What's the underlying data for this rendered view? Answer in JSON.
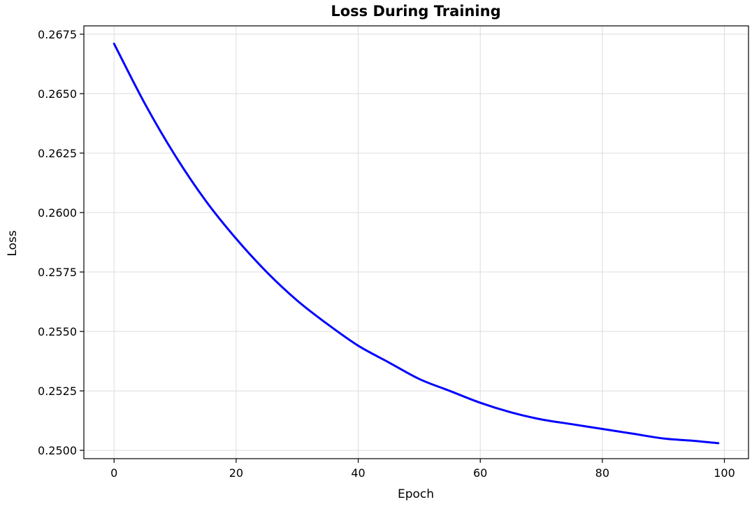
{
  "chart_data": {
    "type": "line",
    "title": "Loss During Training",
    "xlabel": "Epoch",
    "ylabel": "Loss",
    "xlim": [
      -4.95,
      103.95
    ],
    "ylim": [
      0.24965,
      0.26785
    ],
    "x_ticks": [
      0,
      20,
      40,
      60,
      80,
      100
    ],
    "y_ticks": [
      0.25,
      0.2525,
      0.255,
      0.2575,
      0.26,
      0.2625,
      0.265,
      0.2675
    ],
    "x_tick_labels": [
      "0",
      "20",
      "40",
      "60",
      "80",
      "100"
    ],
    "y_tick_labels": [
      "0.2500",
      "0.2525",
      "0.2550",
      "0.2575",
      "0.2600",
      "0.2625",
      "0.2650",
      "0.2675"
    ],
    "grid": true,
    "legend": "none",
    "series": [
      {
        "color": "#0000ff",
        "x": [
          0,
          5,
          10,
          15,
          20,
          25,
          30,
          35,
          40,
          45,
          50,
          55,
          60,
          65,
          70,
          75,
          80,
          85,
          90,
          95,
          99
        ],
        "y": [
          0.2671,
          0.2646,
          0.2624,
          0.2605,
          0.2589,
          0.2575,
          0.2563,
          0.2553,
          0.2544,
          0.2537,
          0.253,
          0.2525,
          0.252,
          0.2516,
          0.2513,
          0.2511,
          0.2509,
          0.2507,
          0.2505,
          0.2504,
          0.2503
        ]
      }
    ]
  }
}
